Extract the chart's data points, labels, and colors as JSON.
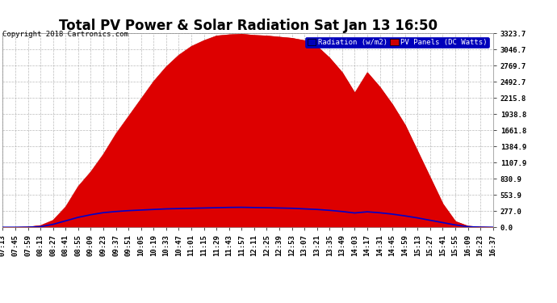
{
  "title": "Total PV Power & Solar Radiation Sat Jan 13 16:50",
  "copyright": "Copyright 2018 Cartronics.com",
  "legend_radiation": "Radiation (w/m2)",
  "legend_pv": "PV Panels (DC Watts)",
  "legend_radiation_bg": "#0000bb",
  "legend_pv_bg": "#cc0000",
  "yticks": [
    0.0,
    277.0,
    553.9,
    830.9,
    1107.9,
    1384.9,
    1661.8,
    1938.8,
    2215.8,
    2492.7,
    2769.7,
    3046.7,
    3323.7
  ],
  "ymax": 3323.7,
  "ymin": 0.0,
  "xtick_labels": [
    "07:13",
    "07:45",
    "07:59",
    "08:13",
    "08:27",
    "08:41",
    "08:55",
    "09:09",
    "09:23",
    "09:37",
    "09:51",
    "10:05",
    "10:19",
    "10:33",
    "10:47",
    "11:01",
    "11:15",
    "11:29",
    "11:43",
    "11:57",
    "12:11",
    "12:25",
    "12:39",
    "12:53",
    "13:07",
    "13:21",
    "13:35",
    "13:49",
    "14:03",
    "14:17",
    "14:31",
    "14:45",
    "14:59",
    "15:13",
    "15:27",
    "15:41",
    "15:55",
    "16:09",
    "16:23",
    "16:37"
  ],
  "pv_values": [
    0,
    0,
    5,
    30,
    120,
    350,
    700,
    950,
    1250,
    1600,
    1900,
    2200,
    2500,
    2750,
    2950,
    3100,
    3200,
    3280,
    3300,
    3310,
    3290,
    3280,
    3260,
    3240,
    3200,
    3100,
    2900,
    2650,
    2300,
    2650,
    2400,
    2100,
    1750,
    1300,
    850,
    400,
    100,
    20,
    5,
    0
  ],
  "radiation_values": [
    0,
    0,
    2,
    10,
    50,
    110,
    170,
    215,
    250,
    270,
    285,
    295,
    305,
    315,
    320,
    325,
    330,
    335,
    340,
    342,
    338,
    335,
    330,
    325,
    315,
    305,
    290,
    270,
    245,
    265,
    248,
    225,
    195,
    160,
    120,
    80,
    40,
    10,
    2,
    0
  ],
  "bg_color": "#ffffff",
  "plot_bg_color": "#ffffff",
  "grid_color": "#aaaaaa",
  "pv_fill_color": "#dd0000",
  "pv_line_color": "#cc0000",
  "radiation_line_color": "#0000cc",
  "title_fontsize": 12,
  "axis_fontsize": 6.5,
  "copyright_fontsize": 6.5
}
